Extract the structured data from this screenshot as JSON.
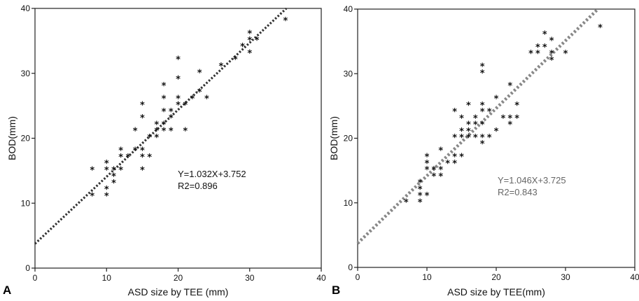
{
  "chart_data": [
    {
      "type": "scatter",
      "panel_label": "A",
      "xlabel": "ASD size by TEE (mm)",
      "ylabel": "BOD(mm)",
      "xlim": [
        0,
        40
      ],
      "ylim": [
        0,
        40
      ],
      "x_ticks": [
        "0",
        "10",
        "20",
        "30",
        "40"
      ],
      "y_ticks": [
        "0",
        "10",
        "20",
        "30",
        "40"
      ],
      "grid": false,
      "marker": "*",
      "annotation_lines": [
        "Y=1.032X+3.752",
        "R2=0.896"
      ],
      "trendline": {
        "slope": 1.032,
        "intercept": 3.752,
        "style": "dotted",
        "color": "#333333"
      },
      "points": [
        [
          8,
          15
        ],
        [
          8,
          11
        ],
        [
          10,
          16
        ],
        [
          10,
          15
        ],
        [
          10,
          12
        ],
        [
          10,
          11
        ],
        [
          11,
          15
        ],
        [
          11,
          14
        ],
        [
          11,
          13
        ],
        [
          12,
          18
        ],
        [
          12,
          17
        ],
        [
          12,
          15
        ],
        [
          13,
          17
        ],
        [
          14,
          21
        ],
        [
          14,
          18
        ],
        [
          15,
          25
        ],
        [
          15,
          23
        ],
        [
          15,
          18
        ],
        [
          15,
          17
        ],
        [
          15,
          15
        ],
        [
          16,
          20
        ],
        [
          16,
          17
        ],
        [
          17,
          22
        ],
        [
          17,
          21
        ],
        [
          17,
          20
        ],
        [
          18,
          28
        ],
        [
          18,
          26
        ],
        [
          18,
          24
        ],
        [
          18,
          22
        ],
        [
          18,
          21
        ],
        [
          19,
          24
        ],
        [
          19,
          23
        ],
        [
          19,
          21
        ],
        [
          20,
          32
        ],
        [
          20,
          29
        ],
        [
          20,
          26
        ],
        [
          20,
          25
        ],
        [
          21,
          25
        ],
        [
          21,
          21
        ],
        [
          22,
          26
        ],
        [
          23,
          30
        ],
        [
          23,
          27
        ],
        [
          24,
          26
        ],
        [
          26,
          31
        ],
        [
          28,
          32
        ],
        [
          29,
          34
        ],
        [
          30,
          36
        ],
        [
          30,
          35
        ],
        [
          30,
          33
        ],
        [
          31,
          35
        ],
        [
          35,
          38
        ]
      ]
    },
    {
      "type": "scatter",
      "panel_label": "B",
      "xlabel": "ASD size by TEE(mm)",
      "ylabel": "BOD(mm)",
      "xlim": [
        0,
        40
      ],
      "ylim": [
        0,
        40
      ],
      "x_ticks": [
        "0",
        "10",
        "20",
        "30",
        "40"
      ],
      "y_ticks": [
        "0",
        "10",
        "20",
        "30",
        "40"
      ],
      "grid": false,
      "marker": "*",
      "annotation_lines": [
        "Y=1.046X+3.725",
        "R2=0.843"
      ],
      "trendline": {
        "slope": 1.046,
        "intercept": 3.725,
        "style": "dotted",
        "color": "#888888"
      },
      "points": [
        [
          7,
          10
        ],
        [
          9,
          13
        ],
        [
          9,
          12
        ],
        [
          9,
          11
        ],
        [
          9,
          10
        ],
        [
          10,
          17
        ],
        [
          10,
          16
        ],
        [
          10,
          15
        ],
        [
          10,
          11
        ],
        [
          11,
          15
        ],
        [
          11,
          14
        ],
        [
          12,
          18
        ],
        [
          12,
          15
        ],
        [
          12,
          14
        ],
        [
          13,
          16
        ],
        [
          14,
          24
        ],
        [
          14,
          20
        ],
        [
          14,
          17
        ],
        [
          14,
          16
        ],
        [
          15,
          23
        ],
        [
          15,
          21
        ],
        [
          15,
          20
        ],
        [
          15,
          17
        ],
        [
          16,
          25
        ],
        [
          16,
          22
        ],
        [
          16,
          21
        ],
        [
          16,
          20
        ],
        [
          17,
          23
        ],
        [
          17,
          22
        ],
        [
          17,
          20
        ],
        [
          18,
          31
        ],
        [
          18,
          30
        ],
        [
          18,
          25
        ],
        [
          18,
          24
        ],
        [
          18,
          22
        ],
        [
          18,
          20
        ],
        [
          18,
          19
        ],
        [
          19,
          24
        ],
        [
          19,
          20
        ],
        [
          20,
          26
        ],
        [
          20,
          21
        ],
        [
          21,
          23
        ],
        [
          22,
          28
        ],
        [
          22,
          23
        ],
        [
          22,
          22
        ],
        [
          23,
          25
        ],
        [
          23,
          23
        ],
        [
          25,
          33
        ],
        [
          26,
          34
        ],
        [
          26,
          33
        ],
        [
          27,
          36
        ],
        [
          27,
          34
        ],
        [
          28,
          35
        ],
        [
          28,
          33
        ],
        [
          28,
          32
        ],
        [
          30,
          33
        ],
        [
          35,
          37
        ]
      ]
    }
  ]
}
